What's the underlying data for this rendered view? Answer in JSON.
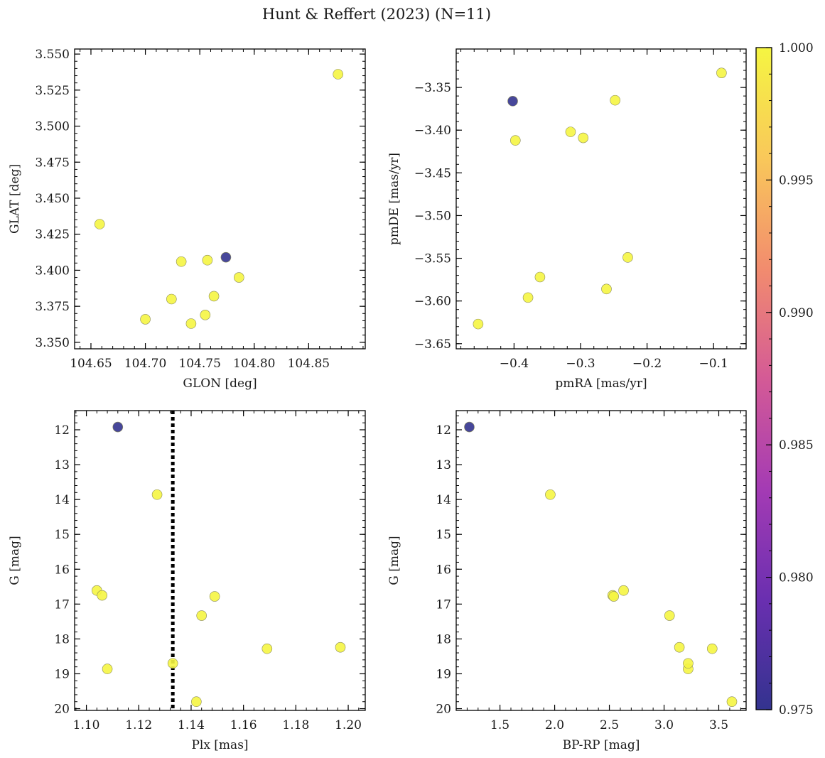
{
  "figure_title": "Hunt & Reffert (2023) (N=11)",
  "colorbar": {
    "min": 0.975,
    "max": 1.0,
    "ticks": [
      0.975,
      0.98,
      0.985,
      0.99,
      0.995,
      1.0
    ],
    "tick_labels": [
      "0.975",
      "0.980",
      "0.985",
      "0.990",
      "0.995",
      "1.000"
    ],
    "colormap": "plasma-like",
    "stops": [
      "#33338f",
      "#6a2fb0",
      "#a43bb4",
      "#d45a96",
      "#f28c6e",
      "#f9c85a",
      "#f5f542"
    ]
  },
  "chart_data": [
    {
      "type": "scatter",
      "name": "glon-glat",
      "title": "",
      "xlabel": "GLON [deg]",
      "ylabel": "GLAT [deg]",
      "xlim": [
        104.635,
        104.902
      ],
      "ylim": [
        3.3455,
        3.5535
      ],
      "xticks": [
        104.65,
        104.7,
        104.75,
        104.8,
        104.85
      ],
      "xtick_labels": [
        "104.65",
        "104.70",
        "104.75",
        "104.80",
        "104.85"
      ],
      "xminor": 0.01,
      "yticks": [
        3.35,
        3.375,
        3.4,
        3.425,
        3.45,
        3.475,
        3.5,
        3.525,
        3.55
      ],
      "ytick_labels": [
        "3.350",
        "3.375",
        "3.400",
        "3.425",
        "3.450",
        "3.475",
        "3.500",
        "3.525",
        "3.550"
      ],
      "yminor": 0.005,
      "points": [
        {
          "x": 104.658,
          "y": 3.432,
          "c": 1.0
        },
        {
          "x": 104.7,
          "y": 3.366,
          "c": 1.0
        },
        {
          "x": 104.724,
          "y": 3.38,
          "c": 1.0
        },
        {
          "x": 104.733,
          "y": 3.406,
          "c": 1.0
        },
        {
          "x": 104.742,
          "y": 3.363,
          "c": 1.0
        },
        {
          "x": 104.755,
          "y": 3.369,
          "c": 1.0
        },
        {
          "x": 104.757,
          "y": 3.407,
          "c": 1.0
        },
        {
          "x": 104.763,
          "y": 3.382,
          "c": 1.0
        },
        {
          "x": 104.786,
          "y": 3.395,
          "c": 1.0
        },
        {
          "x": 104.877,
          "y": 3.536,
          "c": 1.0
        },
        {
          "x": 104.774,
          "y": 3.409,
          "c": 0.975
        }
      ]
    },
    {
      "type": "scatter",
      "name": "pmra-pmde",
      "title": "",
      "xlabel": "pmRA [mas/yr]",
      "ylabel": "pmDE [mas/yr]",
      "xlim": [
        -0.487,
        -0.051
      ],
      "ylim": [
        -3.656,
        -3.305
      ],
      "xticks": [
        -0.4,
        -0.3,
        -0.2,
        -0.1
      ],
      "xtick_labels": [
        "−0.4",
        "−0.3",
        "−0.2",
        "−0.1"
      ],
      "xminor": 0.02,
      "yticks": [
        -3.65,
        -3.6,
        -3.55,
        -3.5,
        -3.45,
        -3.4,
        -3.35
      ],
      "ytick_labels": [
        "−3.65",
        "−3.60",
        "−3.55",
        "−3.50",
        "−3.45",
        "−3.40",
        "−3.35"
      ],
      "yminor": 0.01,
      "points": [
        {
          "x": -0.454,
          "y": -3.627,
          "c": 1.0
        },
        {
          "x": -0.398,
          "y": -3.412,
          "c": 1.0
        },
        {
          "x": -0.379,
          "y": -3.596,
          "c": 1.0
        },
        {
          "x": -0.361,
          "y": -3.572,
          "c": 1.0
        },
        {
          "x": -0.315,
          "y": -3.402,
          "c": 1.0
        },
        {
          "x": -0.296,
          "y": -3.409,
          "c": 1.0
        },
        {
          "x": -0.261,
          "y": -3.586,
          "c": 1.0
        },
        {
          "x": -0.248,
          "y": -3.365,
          "c": 1.0
        },
        {
          "x": -0.229,
          "y": -3.549,
          "c": 1.0
        },
        {
          "x": -0.088,
          "y": -3.333,
          "c": 1.0
        },
        {
          "x": -0.402,
          "y": -3.366,
          "c": 0.975
        }
      ]
    },
    {
      "type": "scatter",
      "name": "plx-g",
      "title": "",
      "xlabel": "Plx [mas]",
      "ylabel": "G [mag]",
      "xlim": [
        1.0955,
        1.2065
      ],
      "ylim": [
        20.05,
        11.45
      ],
      "xticks": [
        1.1,
        1.12,
        1.14,
        1.16,
        1.18,
        1.2
      ],
      "xtick_labels": [
        "1.10",
        "1.12",
        "1.14",
        "1.16",
        "1.18",
        "1.20"
      ],
      "xminor": 0.004,
      "yticks": [
        12,
        13,
        14,
        15,
        16,
        17,
        18,
        19,
        20
      ],
      "ytick_labels": [
        "12",
        "13",
        "14",
        "15",
        "16",
        "17",
        "18",
        "19",
        "20"
      ],
      "yminor": 0.2,
      "vline": 1.133,
      "points": [
        {
          "x": 1.104,
          "y": 16.61,
          "c": 1.0
        },
        {
          "x": 1.106,
          "y": 16.75,
          "c": 1.0
        },
        {
          "x": 1.108,
          "y": 18.86,
          "c": 1.0
        },
        {
          "x": 1.127,
          "y": 13.86,
          "c": 1.0
        },
        {
          "x": 1.133,
          "y": 18.7,
          "c": 1.0
        },
        {
          "x": 1.142,
          "y": 19.8,
          "c": 1.0
        },
        {
          "x": 1.144,
          "y": 17.33,
          "c": 1.0
        },
        {
          "x": 1.149,
          "y": 16.78,
          "c": 1.0
        },
        {
          "x": 1.169,
          "y": 18.28,
          "c": 1.0
        },
        {
          "x": 1.197,
          "y": 18.24,
          "c": 1.0
        },
        {
          "x": 1.112,
          "y": 11.92,
          "c": 0.975
        }
      ]
    },
    {
      "type": "scatter",
      "name": "bprp-g",
      "title": "",
      "xlabel": "BP-RP [mag]",
      "ylabel": "G [mag]",
      "xlim": [
        1.1,
        3.75
      ],
      "ylim": [
        20.05,
        11.45
      ],
      "xticks": [
        1.5,
        2.0,
        2.5,
        3.0,
        3.5
      ],
      "xtick_labels": [
        "1.5",
        "2.0",
        "2.5",
        "3.0",
        "3.5"
      ],
      "xminor": 0.1,
      "yticks": [
        12,
        13,
        14,
        15,
        16,
        17,
        18,
        19,
        20
      ],
      "ytick_labels": [
        "12",
        "13",
        "14",
        "15",
        "16",
        "17",
        "18",
        "19",
        "20"
      ],
      "yminor": 0.2,
      "points": [
        {
          "x": 1.96,
          "y": 13.86,
          "c": 1.0
        },
        {
          "x": 2.53,
          "y": 16.75,
          "c": 1.0
        },
        {
          "x": 2.54,
          "y": 16.78,
          "c": 1.0
        },
        {
          "x": 2.63,
          "y": 16.61,
          "c": 1.0
        },
        {
          "x": 3.05,
          "y": 17.33,
          "c": 1.0
        },
        {
          "x": 3.14,
          "y": 18.24,
          "c": 1.0
        },
        {
          "x": 3.22,
          "y": 18.86,
          "c": 1.0
        },
        {
          "x": 3.22,
          "y": 18.7,
          "c": 1.0
        },
        {
          "x": 3.44,
          "y": 18.28,
          "c": 1.0
        },
        {
          "x": 3.62,
          "y": 19.8,
          "c": 1.0
        },
        {
          "x": 1.22,
          "y": 11.92,
          "c": 0.975
        }
      ]
    }
  ]
}
